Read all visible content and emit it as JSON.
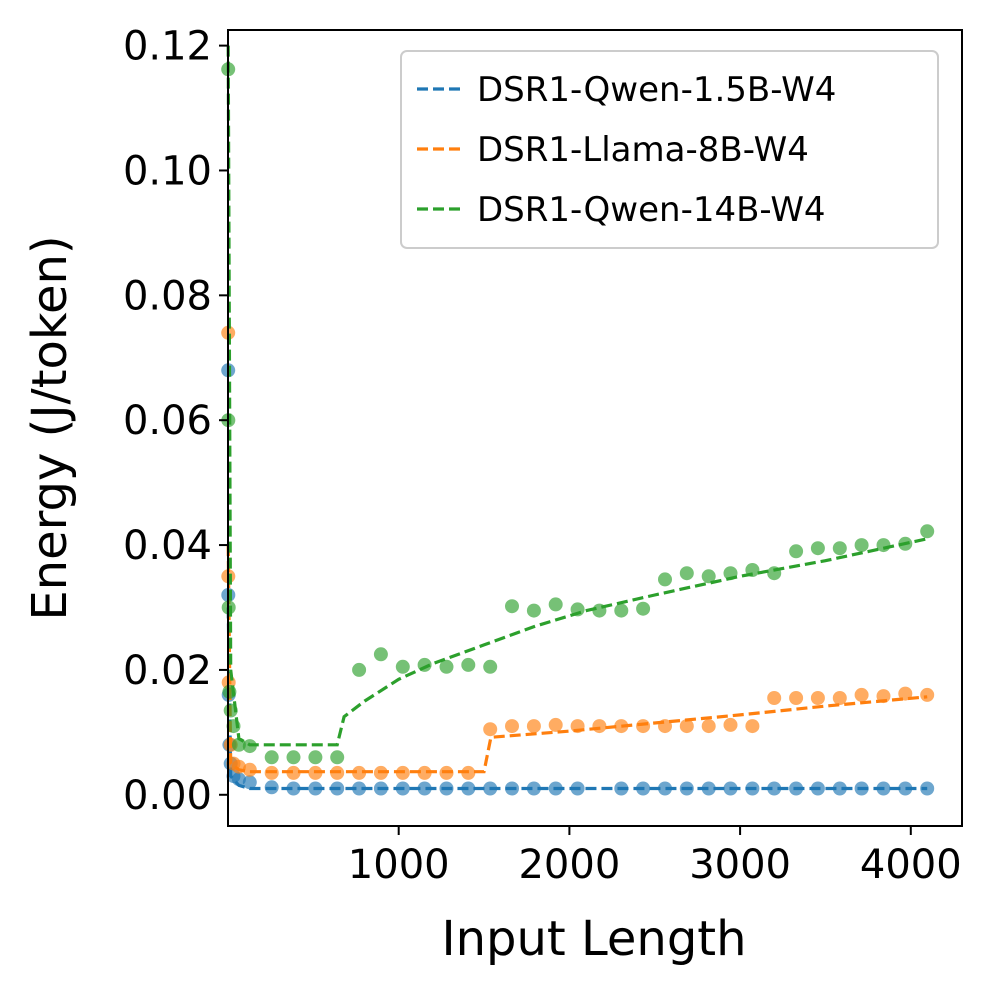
{
  "chart_data": {
    "type": "scatter",
    "title": "",
    "xlabel": "Input Length",
    "ylabel": "Energy (J/token)",
    "xlim": [
      0,
      4300
    ],
    "ylim": [
      -0.005,
      0.1225
    ],
    "xticks": [
      1000,
      2000,
      3000,
      4000
    ],
    "xtick_labels": [
      "1000",
      "2000",
      "3000",
      "4000"
    ],
    "yticks": [
      0.0,
      0.02,
      0.04,
      0.06,
      0.08,
      0.1,
      0.12
    ],
    "ytick_labels": [
      "0.00",
      "0.02",
      "0.04",
      "0.06",
      "0.08",
      "0.10",
      "0.12"
    ],
    "legend_position": "top-right",
    "series": [
      {
        "name": "DSR1-Qwen-1.5B-W4",
        "color": "#1f77b4",
        "points": [
          [
            1,
            0.068
          ],
          [
            2,
            0.032
          ],
          [
            4,
            0.016
          ],
          [
            8,
            0.008
          ],
          [
            16,
            0.005
          ],
          [
            32,
            0.003
          ],
          [
            64,
            0.0025
          ],
          [
            128,
            0.002
          ],
          [
            256,
            0.0012
          ],
          [
            384,
            0.001
          ],
          [
            512,
            0.001
          ],
          [
            640,
            0.001
          ],
          [
            768,
            0.001
          ],
          [
            896,
            0.001
          ],
          [
            1024,
            0.001
          ],
          [
            1152,
            0.001
          ],
          [
            1280,
            0.001
          ],
          [
            1408,
            0.001
          ],
          [
            1536,
            0.001
          ],
          [
            1664,
            0.001
          ],
          [
            1792,
            0.001
          ],
          [
            1920,
            0.001
          ],
          [
            2048,
            0.001
          ],
          [
            2304,
            0.001
          ],
          [
            2432,
            0.001
          ],
          [
            2560,
            0.001
          ],
          [
            2688,
            0.001
          ],
          [
            2816,
            0.001
          ],
          [
            2944,
            0.001
          ],
          [
            3072,
            0.001
          ],
          [
            3200,
            0.001
          ],
          [
            3328,
            0.001
          ],
          [
            3456,
            0.001
          ],
          [
            3584,
            0.001
          ],
          [
            3712,
            0.001
          ],
          [
            3840,
            0.001
          ],
          [
            3968,
            0.001
          ],
          [
            4096,
            0.001
          ]
        ],
        "fit": [
          [
            1,
            0.03
          ],
          [
            16,
            0.003
          ],
          [
            64,
            0.0015
          ],
          [
            128,
            0.001
          ],
          [
            4096,
            0.001
          ]
        ]
      },
      {
        "name": "DSR1-Llama-8B-W4",
        "color": "#ff7f0e",
        "points": [
          [
            1,
            0.074
          ],
          [
            2,
            0.035
          ],
          [
            4,
            0.018
          ],
          [
            16,
            0.008
          ],
          [
            32,
            0.005
          ],
          [
            64,
            0.0045
          ],
          [
            128,
            0.004
          ],
          [
            256,
            0.0035
          ],
          [
            384,
            0.0035
          ],
          [
            512,
            0.0035
          ],
          [
            640,
            0.0035
          ],
          [
            768,
            0.0035
          ],
          [
            896,
            0.0035
          ],
          [
            1024,
            0.0035
          ],
          [
            1152,
            0.0035
          ],
          [
            1280,
            0.0035
          ],
          [
            1408,
            0.0035
          ],
          [
            1536,
            0.0105
          ],
          [
            1664,
            0.011
          ],
          [
            1792,
            0.011
          ],
          [
            1920,
            0.0112
          ],
          [
            2048,
            0.011
          ],
          [
            2176,
            0.011
          ],
          [
            2304,
            0.011
          ],
          [
            2432,
            0.011
          ],
          [
            2560,
            0.011
          ],
          [
            2688,
            0.011
          ],
          [
            2816,
            0.011
          ],
          [
            2944,
            0.0112
          ],
          [
            3072,
            0.011
          ],
          [
            3200,
            0.0155
          ],
          [
            3328,
            0.0155
          ],
          [
            3456,
            0.0155
          ],
          [
            3584,
            0.0155
          ],
          [
            3712,
            0.016
          ],
          [
            3840,
            0.0158
          ],
          [
            3968,
            0.0162
          ],
          [
            4096,
            0.016
          ]
        ],
        "fit": [
          [
            1,
            0.04
          ],
          [
            16,
            0.005
          ],
          [
            64,
            0.004
          ],
          [
            128,
            0.0037
          ],
          [
            1500,
            0.0037
          ],
          [
            1540,
            0.0092
          ],
          [
            2000,
            0.0102
          ],
          [
            2500,
            0.0115
          ],
          [
            3000,
            0.0128
          ],
          [
            3500,
            0.0142
          ],
          [
            4096,
            0.0157
          ]
        ]
      },
      {
        "name": "DSR1-Qwen-14B-W4",
        "color": "#2ca02c",
        "points": [
          [
            1,
            0.1162
          ],
          [
            2,
            0.06
          ],
          [
            4,
            0.03
          ],
          [
            8,
            0.0165
          ],
          [
            16,
            0.0135
          ],
          [
            32,
            0.011
          ],
          [
            64,
            0.008
          ],
          [
            128,
            0.0078
          ],
          [
            256,
            0.006
          ],
          [
            384,
            0.006
          ],
          [
            512,
            0.006
          ],
          [
            640,
            0.006
          ],
          [
            768,
            0.02
          ],
          [
            896,
            0.0225
          ],
          [
            1024,
            0.0205
          ],
          [
            1152,
            0.0208
          ],
          [
            1280,
            0.0205
          ],
          [
            1408,
            0.0208
          ],
          [
            1536,
            0.0205
          ],
          [
            1664,
            0.0302
          ],
          [
            1792,
            0.0295
          ],
          [
            1920,
            0.0305
          ],
          [
            2048,
            0.0297
          ],
          [
            2176,
            0.0295
          ],
          [
            2304,
            0.0295
          ],
          [
            2432,
            0.0298
          ],
          [
            2560,
            0.0345
          ],
          [
            2688,
            0.0355
          ],
          [
            2816,
            0.035
          ],
          [
            2944,
            0.0355
          ],
          [
            3072,
            0.036
          ],
          [
            3200,
            0.0355
          ],
          [
            3328,
            0.039
          ],
          [
            3456,
            0.0395
          ],
          [
            3584,
            0.0395
          ],
          [
            3712,
            0.04
          ],
          [
            3840,
            0.04
          ],
          [
            3968,
            0.0402
          ],
          [
            4096,
            0.0422
          ]
        ],
        "fit": [
          [
            1,
            0.12
          ],
          [
            16,
            0.02
          ],
          [
            64,
            0.009
          ],
          [
            128,
            0.008
          ],
          [
            640,
            0.008
          ],
          [
            680,
            0.0125
          ],
          [
            800,
            0.015
          ],
          [
            1000,
            0.0185
          ],
          [
            1200,
            0.021
          ],
          [
            1500,
            0.024
          ],
          [
            1800,
            0.027
          ],
          [
            2100,
            0.0295
          ],
          [
            2500,
            0.032
          ],
          [
            3000,
            0.035
          ],
          [
            3500,
            0.0375
          ],
          [
            4096,
            0.041
          ]
        ]
      }
    ]
  }
}
